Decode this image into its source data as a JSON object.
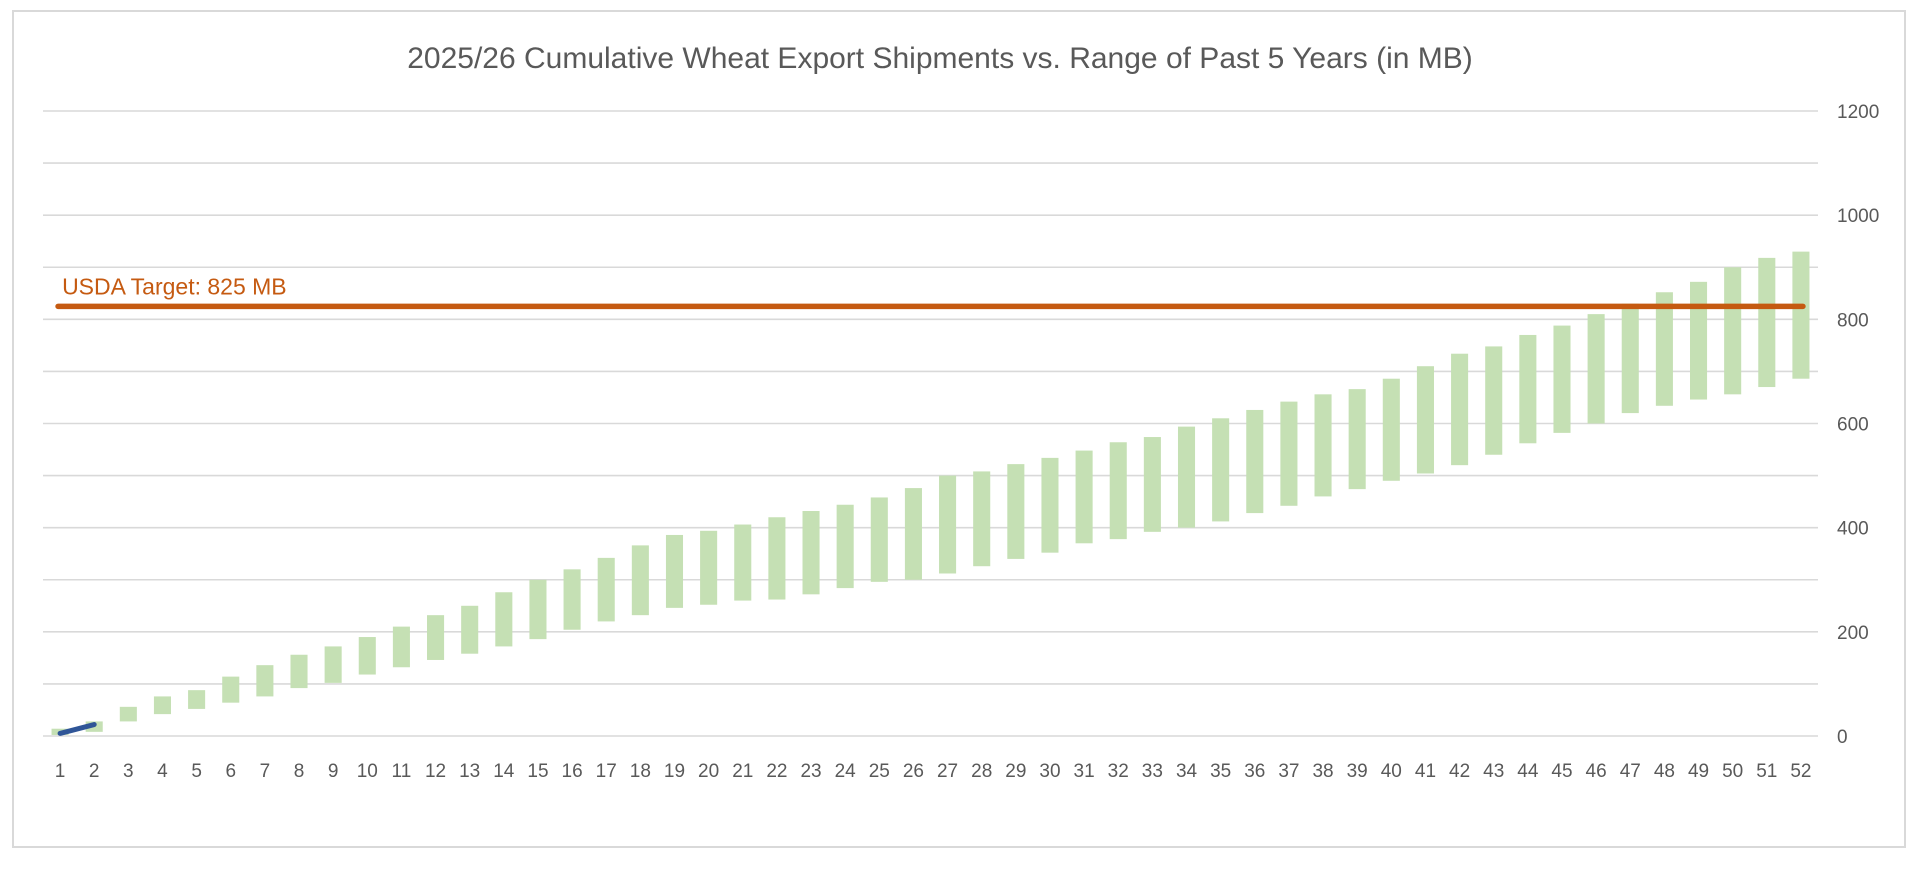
{
  "chart_data": {
    "type": "bar",
    "title": "2025/26 Cumulative Wheat Export Shipments vs. Range of Past 5 Years (in MB)",
    "x": [
      1,
      2,
      3,
      4,
      5,
      6,
      7,
      8,
      9,
      10,
      11,
      12,
      13,
      14,
      15,
      16,
      17,
      18,
      19,
      20,
      21,
      22,
      23,
      24,
      25,
      26,
      27,
      28,
      29,
      30,
      31,
      32,
      33,
      34,
      35,
      36,
      37,
      38,
      39,
      40,
      41,
      42,
      43,
      44,
      45,
      46,
      47,
      48,
      49,
      50,
      51,
      52
    ],
    "ylim": [
      0,
      1200
    ],
    "yticks": [
      0,
      200,
      400,
      600,
      800,
      1000,
      1200
    ],
    "y_axis_position": "right",
    "grid": true,
    "legend": "none",
    "series": [
      {
        "kind": "floating-range",
        "color": "#c5e0b4",
        "low": [
          2,
          8,
          28,
          42,
          52,
          64,
          76,
          92,
          102,
          118,
          132,
          146,
          158,
          172,
          186,
          204,
          220,
          232,
          246,
          252,
          260,
          262,
          272,
          284,
          296,
          300,
          312,
          326,
          340,
          352,
          370,
          378,
          392,
          400,
          412,
          428,
          442,
          460,
          474,
          490,
          504,
          520,
          540,
          562,
          582,
          600,
          620,
          634,
          646,
          656,
          670,
          686
        ],
        "high": [
          14,
          28,
          56,
          76,
          88,
          114,
          136,
          156,
          172,
          190,
          210,
          232,
          250,
          276,
          300,
          320,
          342,
          366,
          386,
          394,
          406,
          420,
          432,
          444,
          458,
          476,
          500,
          508,
          522,
          534,
          548,
          564,
          574,
          594,
          610,
          626,
          642,
          656,
          666,
          686,
          710,
          734,
          748,
          770,
          788,
          810,
          830,
          852,
          872,
          900,
          918,
          930
        ]
      },
      {
        "name": "2025/26",
        "kind": "line",
        "color": "#2f5597",
        "x": [
          1,
          2
        ],
        "values": [
          5,
          22
        ]
      }
    ],
    "reference_lines": [
      {
        "label": "USDA Target: 825 MB",
        "value": 825,
        "color": "#c55a11"
      }
    ]
  }
}
